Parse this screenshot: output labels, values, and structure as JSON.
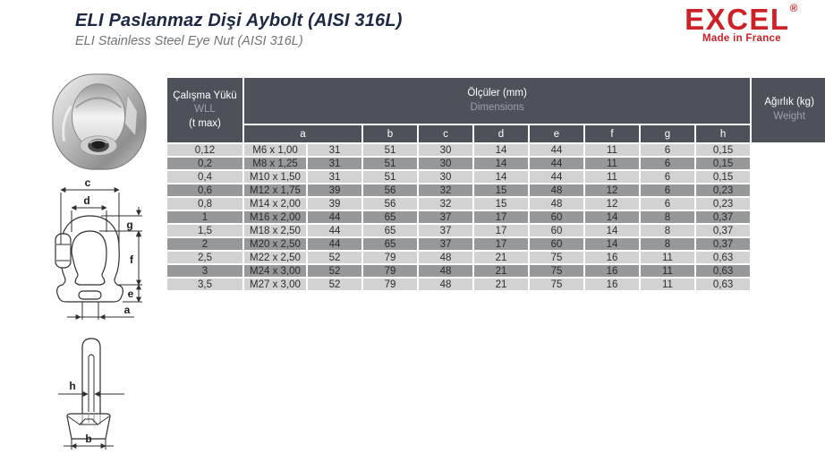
{
  "header": {
    "title": "ELI Paslanmaz Dişi Aybolt (AISI 316L)",
    "subtitle": "ELI Stainless Steel Eye Nut (AISI 316L)"
  },
  "logo": {
    "brand": "EXCEL",
    "registered_mark": "®",
    "tagline": "Made in France"
  },
  "table": {
    "header": {
      "wll_line1": "Çalışma Yükü",
      "wll_line2": "WLL",
      "wll_line3": "(t max)",
      "dims_line1": "Ölçüler (mm)",
      "dims_line2": "Dimensions",
      "weight_line1": "Ağırlık (kg)",
      "weight_line2": "Weight",
      "dim_columns": [
        "a",
        "b",
        "c",
        "d",
        "e",
        "f",
        "g",
        "h"
      ]
    },
    "column_order": [
      "wll",
      "a",
      "b",
      "c",
      "d",
      "e",
      "f",
      "g",
      "h",
      "weight"
    ],
    "rows": [
      {
        "wll": "0,12",
        "a": "M6 x 1,00",
        "b": "31",
        "c": "51",
        "d": "30",
        "e": "14",
        "f": "44",
        "g": "11",
        "h": "6",
        "weight": "0,15"
      },
      {
        "wll": "0,2",
        "a": "M8 x 1,25",
        "b": "31",
        "c": "51",
        "d": "30",
        "e": "14",
        "f": "44",
        "g": "11",
        "h": "6",
        "weight": "0,15"
      },
      {
        "wll": "0,4",
        "a": "M10 x 1,50",
        "b": "31",
        "c": "51",
        "d": "30",
        "e": "14",
        "f": "44",
        "g": "11",
        "h": "6",
        "weight": "0,15"
      },
      {
        "wll": "0,6",
        "a": "M12 x 1,75",
        "b": "39",
        "c": "56",
        "d": "32",
        "e": "15",
        "f": "48",
        "g": "12",
        "h": "6",
        "weight": "0,23"
      },
      {
        "wll": "0,8",
        "a": "M14 x 2,00",
        "b": "39",
        "c": "56",
        "d": "32",
        "e": "15",
        "f": "48",
        "g": "12",
        "h": "6",
        "weight": "0,23"
      },
      {
        "wll": "1",
        "a": "M16 x 2,00",
        "b": "44",
        "c": "65",
        "d": "37",
        "e": "17",
        "f": "60",
        "g": "14",
        "h": "8",
        "weight": "0,37"
      },
      {
        "wll": "1,5",
        "a": "M18 x 2,50",
        "b": "44",
        "c": "65",
        "d": "37",
        "e": "17",
        "f": "60",
        "g": "14",
        "h": "8",
        "weight": "0,37"
      },
      {
        "wll": "2",
        "a": "M20 x 2,50",
        "b": "44",
        "c": "65",
        "d": "37",
        "e": "17",
        "f": "60",
        "g": "14",
        "h": "8",
        "weight": "0,37"
      },
      {
        "wll": "2,5",
        "a": "M22 x 2,50",
        "b": "52",
        "c": "79",
        "d": "48",
        "e": "21",
        "f": "75",
        "g": "16",
        "h": "11",
        "weight": "0,63"
      },
      {
        "wll": "3",
        "a": "M24 x 3,00",
        "b": "52",
        "c": "79",
        "d": "48",
        "e": "21",
        "f": "75",
        "g": "16",
        "h": "11",
        "weight": "0,63"
      },
      {
        "wll": "3,5",
        "a": "M27 x 3,00",
        "b": "52",
        "c": "79",
        "d": "48",
        "e": "21",
        "f": "75",
        "g": "16",
        "h": "11",
        "weight": "0,63"
      }
    ]
  },
  "diagrams": {
    "front_view_labels": {
      "c": "c",
      "d": "d",
      "g": "g",
      "f": "f",
      "e": "e",
      "a": "a"
    },
    "side_view_labels": {
      "h": "h",
      "b": "b"
    }
  },
  "colors": {
    "brand_red": "#cc2127",
    "title_navy": "#1c2844",
    "table_header": "#4d515a",
    "row_light": "#d2d2d3",
    "row_dark": "#97989a"
  }
}
